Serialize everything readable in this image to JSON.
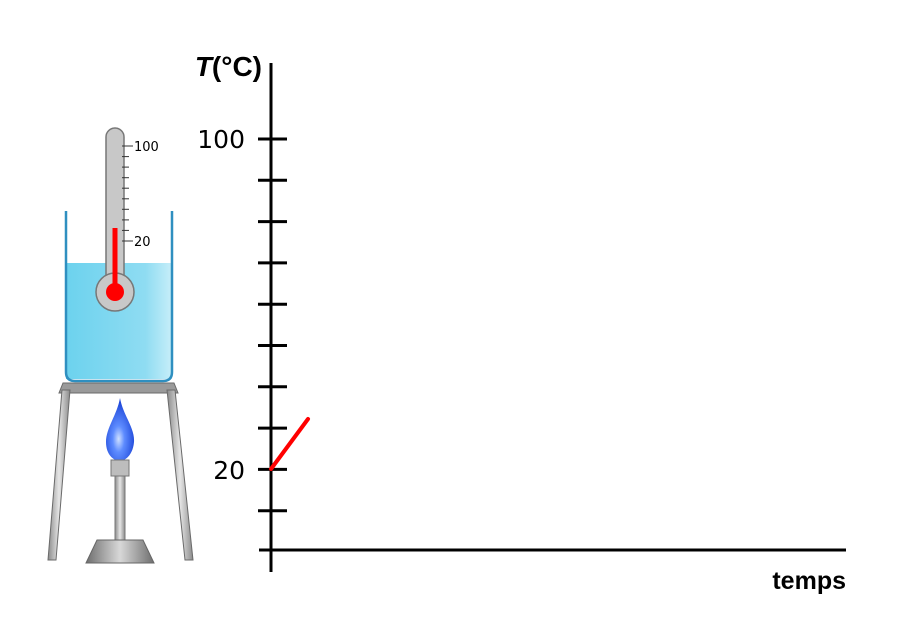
{
  "graph": {
    "y_axis_label": "T",
    "y_axis_unit": "(°C)",
    "x_axis_label": "temps",
    "tick_labels": [
      "100",
      "20"
    ],
    "curve_color": "#ff0000"
  },
  "thermometer": {
    "scale_labels": [
      "100",
      "20"
    ],
    "liquid_color": "#ff0000"
  },
  "colors": {
    "water": "#7fd6f0",
    "flame": "#3a6cf0",
    "axis": "#000000"
  }
}
